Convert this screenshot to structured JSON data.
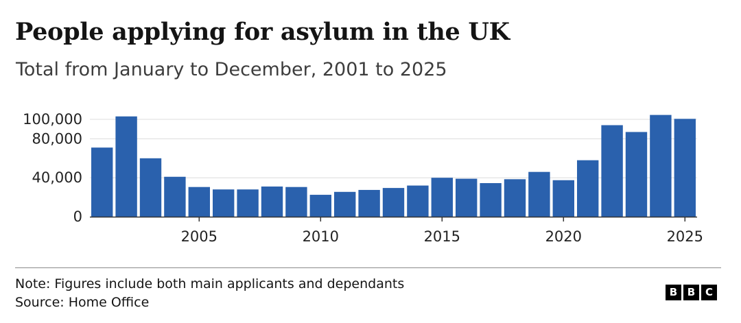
{
  "header": {
    "title": "People applying for asylum in the UK",
    "subtitle": "Total from January to December, 2001 to 2025"
  },
  "footer": {
    "note": "Note: Figures include both main applicants and dependants",
    "source": "Source: Home Office",
    "logo_letters": [
      "B",
      "B",
      "C"
    ]
  },
  "colors": {
    "bar": "#2a61ad",
    "gridline": "#dcdcdc",
    "axis": "#333333"
  },
  "chart_data": {
    "type": "bar",
    "title": "People applying for asylum in the UK",
    "subtitle": "Total from January to December, 2001 to 2025",
    "xlabel": "",
    "ylabel": "",
    "categories": [
      2001,
      2002,
      2003,
      2004,
      2005,
      2006,
      2007,
      2008,
      2009,
      2010,
      2011,
      2012,
      2013,
      2014,
      2015,
      2016,
      2017,
      2018,
      2019,
      2020,
      2021,
      2022,
      2023,
      2024,
      2025
    ],
    "values": [
      71000,
      103000,
      60000,
      41000,
      30500,
      28000,
      28000,
      31000,
      30500,
      22500,
      25500,
      27500,
      29500,
      32000,
      40000,
      39000,
      34500,
      38500,
      46000,
      37500,
      58000,
      94000,
      87000,
      104500,
      100500
    ],
    "ylim": [
      0,
      100000
    ],
    "yticks": [
      0,
      40000,
      80000,
      100000
    ],
    "ytick_labels": [
      "0",
      "40,000",
      "80,000",
      "100,000"
    ],
    "xticks": [
      2005,
      2010,
      2015,
      2020,
      2025
    ],
    "xtick_labels": [
      "2005",
      "2010",
      "2015",
      "2020",
      "2025"
    ],
    "grid": true,
    "legend": "none"
  }
}
